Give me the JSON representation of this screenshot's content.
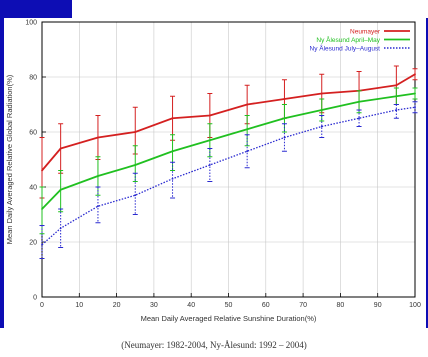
{
  "chart_data": {
    "type": "line",
    "title": "",
    "xlabel": "Mean Daily Averaged Relative Sunshine Duration(%)",
    "ylabel": "Mean Daily Averaged Relative Global Radiation(%)",
    "xlim": [
      0,
      100
    ],
    "ylim": [
      0,
      100
    ],
    "x_ticks": [
      0,
      10,
      20,
      30,
      40,
      50,
      60,
      70,
      80,
      90,
      100
    ],
    "y_ticks": [
      0,
      20,
      40,
      60,
      80,
      100
    ],
    "grid": true,
    "legend_position": "top-right",
    "series": [
      {
        "name": "Neumayer",
        "color": "#d42020",
        "line_style": "solid",
        "x": [
          0,
          5,
          15,
          25,
          35,
          45,
          55,
          65,
          75,
          85,
          95,
          100
        ],
        "y": [
          46,
          54,
          58,
          60,
          65,
          66,
          70,
          72,
          74,
          75,
          77,
          81
        ],
        "error_upper": [
          58,
          63,
          66,
          69,
          73,
          74,
          77,
          79,
          81,
          82,
          84,
          83
        ],
        "error_lower": [
          36,
          45,
          50,
          52,
          57,
          58,
          63,
          65,
          67,
          68,
          70,
          79
        ]
      },
      {
        "name": "Ny Ålesund April–May",
        "color": "#20c020",
        "line_style": "solid",
        "x": [
          0,
          5,
          15,
          25,
          35,
          45,
          55,
          65,
          75,
          85,
          95,
          100
        ],
        "y": [
          32,
          39,
          44,
          48,
          53,
          57,
          61,
          65,
          68,
          71,
          73,
          74
        ],
        "error_upper": [
          40,
          46,
          51,
          55,
          59,
          63,
          66,
          70,
          72,
          75,
          76,
          76
        ],
        "error_lower": [
          23,
          31,
          37,
          42,
          46,
          51,
          55,
          60,
          64,
          67,
          70,
          72
        ]
      },
      {
        "name": "Ny Ålesund July–August",
        "color": "#2a2ad0",
        "line_style": "dotted",
        "x": [
          0,
          5,
          15,
          25,
          35,
          45,
          55,
          65,
          75,
          85,
          95,
          100
        ],
        "y": [
          19,
          25,
          33,
          37,
          43,
          48,
          53,
          58,
          62,
          65,
          68,
          69
        ],
        "error_upper": [
          26,
          32,
          40,
          45,
          49,
          54,
          59,
          63,
          66,
          68,
          70,
          71
        ],
        "error_lower": [
          14,
          18,
          27,
          30,
          36,
          42,
          47,
          53,
          58,
          62,
          65,
          67
        ]
      }
    ]
  },
  "caption": "(Neumayer: 1982-2004, Ny-Ålesund: 1992 – 2004)"
}
